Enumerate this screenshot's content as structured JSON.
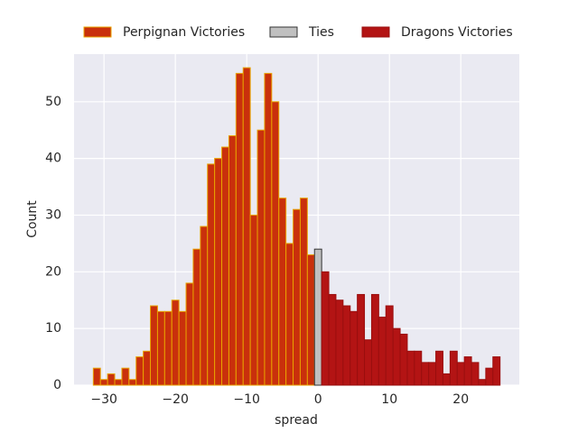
{
  "chart_data": {
    "type": "histogram",
    "xlabel": "spread",
    "ylabel": "Count",
    "xlim": [
      -34.2,
      28.2
    ],
    "ylim": [
      0,
      58.4
    ],
    "xticks": [
      {
        "value": -30,
        "label": "−30"
      },
      {
        "value": -20,
        "label": "−20"
      },
      {
        "value": -10,
        "label": "−10"
      },
      0,
      10,
      20
    ],
    "yticks": [
      0,
      10,
      20,
      30,
      40,
      50
    ],
    "grid": true,
    "legend": "top",
    "series": [
      {
        "name": "Perpignan Victories",
        "color": "#c9300c",
        "edgecolor": "#e8a200",
        "bins": [
          -31.5,
          -30.5,
          -29.5,
          -28.5,
          -27.5,
          -26.5,
          -25.5,
          -24.5,
          -23.5,
          -22.5,
          -21.5,
          -20.5,
          -19.5,
          -18.5,
          -17.5,
          -16.5,
          -15.5,
          -14.5,
          -13.5,
          -12.5,
          -11.5,
          -10.5,
          -9.5,
          -8.5,
          -7.5,
          -6.5,
          -5.5,
          -4.5,
          -3.5,
          -2.5,
          -1.5,
          -0.5
        ],
        "values": [
          3,
          1,
          2,
          1,
          3,
          1,
          5,
          6,
          14,
          13,
          13,
          15,
          13,
          18,
          24,
          28,
          39,
          40,
          42,
          44,
          55,
          56,
          30,
          45,
          55,
          50,
          33,
          25,
          31,
          33,
          23
        ]
      },
      {
        "name": "Ties",
        "color": "#c0c0c0",
        "edgecolor": "#333333",
        "bins": [
          -0.5,
          0.5
        ],
        "values": [
          24
        ]
      },
      {
        "name": "Dragons Victories",
        "color": "#b31414",
        "edgecolor": "#9a0f0f",
        "bins": [
          0.5,
          1.5,
          2.5,
          3.5,
          4.5,
          5.5,
          6.5,
          7.5,
          8.5,
          9.5,
          10.5,
          11.5,
          12.5,
          13.5,
          14.5,
          15.5,
          16.5,
          17.5,
          18.5,
          19.5,
          20.5,
          21.5,
          22.5,
          23.5,
          24.5,
          25.5
        ],
        "values": [
          20,
          16,
          15,
          14,
          13,
          16,
          8,
          16,
          12,
          14,
          10,
          9,
          6,
          6,
          4,
          4,
          6,
          2,
          6,
          4,
          5,
          4,
          1,
          3,
          5
        ]
      }
    ]
  }
}
